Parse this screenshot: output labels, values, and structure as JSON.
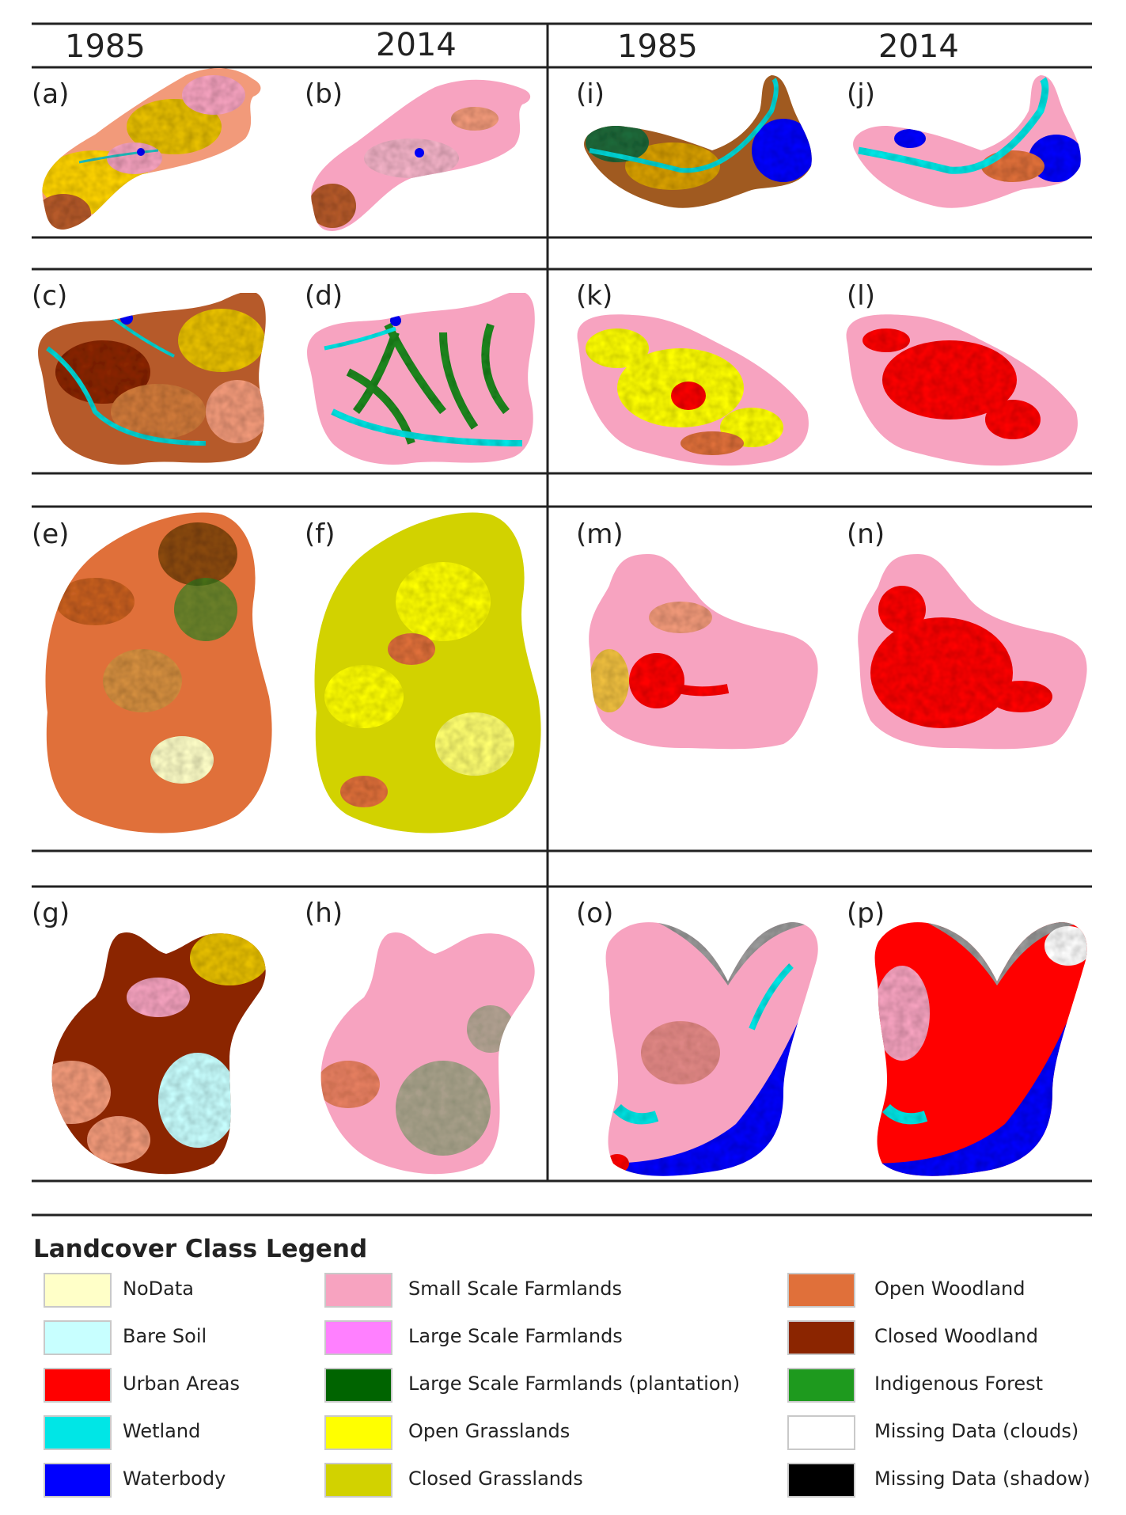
{
  "header": {
    "left_year_1985": "1985",
    "left_year_2014": "2014",
    "right_year_1985": "1985",
    "right_year_2014": "2014"
  },
  "panels": [
    {
      "id": "a",
      "label": "(a)",
      "year": "1985"
    },
    {
      "id": "b",
      "label": "(b)",
      "year": "2014"
    },
    {
      "id": "c",
      "label": "(c)",
      "year": "1985"
    },
    {
      "id": "d",
      "label": "(d)",
      "year": "2014"
    },
    {
      "id": "e",
      "label": "(e)",
      "year": "1985"
    },
    {
      "id": "f",
      "label": "(f)",
      "year": "2014"
    },
    {
      "id": "g",
      "label": "(g)",
      "year": "1985"
    },
    {
      "id": "h",
      "label": "(h)",
      "year": "2014"
    },
    {
      "id": "i",
      "label": "(i)",
      "year": "1985"
    },
    {
      "id": "j",
      "label": "(j)",
      "year": "2014"
    },
    {
      "id": "k",
      "label": "(k)",
      "year": "1985"
    },
    {
      "id": "l",
      "label": "(l)",
      "year": "2014"
    },
    {
      "id": "m",
      "label": "(m)",
      "year": "1985"
    },
    {
      "id": "n",
      "label": "(n)",
      "year": "2014"
    },
    {
      "id": "o",
      "label": "(o)",
      "year": "1985"
    },
    {
      "id": "p",
      "label": "(p)",
      "year": "2014"
    }
  ],
  "legend": {
    "title": "Landcover Class Legend",
    "items": [
      {
        "label": "NoData",
        "color": "#ffffc8"
      },
      {
        "label": "Bare Soil",
        "color": "#c8ffff"
      },
      {
        "label": "Urban Areas",
        "color": "#ff0000"
      },
      {
        "label": "Wetland",
        "color": "#00e6e6"
      },
      {
        "label": "Waterbody",
        "color": "#0000ff"
      },
      {
        "label": "Small Scale Farmlands",
        "color": "#f7a3c0"
      },
      {
        "label": "Large Scale Farmlands",
        "color": "#ff80ff"
      },
      {
        "label": "Large Scale Farmlands (plantation)",
        "color": "#006400"
      },
      {
        "label": "Open Grasslands",
        "color": "#ffff00"
      },
      {
        "label": "Closed Grasslands",
        "color": "#d2d200"
      },
      {
        "label": "Open Woodland",
        "color": "#e0703a"
      },
      {
        "label": "Closed Woodland",
        "color": "#8b2500"
      },
      {
        "label": "Indigenous Forest",
        "color": "#1e9a1e"
      },
      {
        "label": "Missing Data (clouds)",
        "color": "#ffffff"
      },
      {
        "label": "Missing Data (shadow)",
        "color": "#000000"
      }
    ]
  },
  "colors": {
    "missing_area_gray": "#9a9a9a",
    "rule": "#222222"
  }
}
